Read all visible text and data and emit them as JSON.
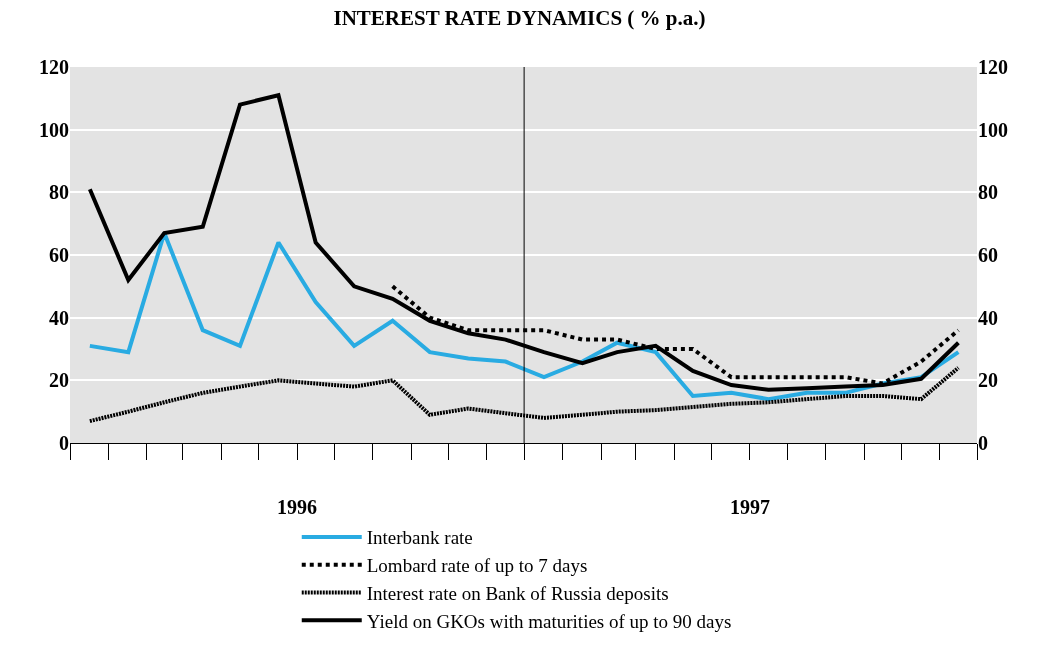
{
  "chart_data": {
    "type": "line",
    "title": "INTEREST RATE DYNAMICS ( % p.a.)",
    "x": [
      "1996-01",
      "1996-02",
      "1996-03",
      "1996-04",
      "1996-05",
      "1996-06",
      "1996-07",
      "1996-08",
      "1996-09",
      "1996-10",
      "1996-11",
      "1996-12",
      "1997-01",
      "1997-02",
      "1997-03",
      "1997-04",
      "1997-05",
      "1997-06",
      "1997-07",
      "1997-08",
      "1997-09",
      "1997-10",
      "1997-11",
      "1997-12"
    ],
    "xlim": [
      "1995-12-16",
      "1997-12-16"
    ],
    "xticks": [
      {
        "value": "1995-12-16",
        "label": null
      },
      {
        "value": "1996-01-16",
        "label": null
      },
      {
        "value": "1996-02-16",
        "label": null
      },
      {
        "value": "1996-03-16",
        "label": null
      },
      {
        "value": "1996-04-16",
        "label": null
      },
      {
        "value": "1996-05-16",
        "label": null
      },
      {
        "value": "1996-06-16",
        "label": "1996"
      },
      {
        "value": "1996-07-16",
        "label": null
      },
      {
        "value": "1996-08-16",
        "label": null
      },
      {
        "value": "1996-09-16",
        "label": null
      },
      {
        "value": "1996-10-16",
        "label": null
      },
      {
        "value": "1996-11-16",
        "label": null
      },
      {
        "value": "1996-12-16",
        "label": null
      },
      {
        "value": "1997-01-16",
        "label": null
      },
      {
        "value": "1997-02-16",
        "label": null
      },
      {
        "value": "1997-03-16",
        "label": null
      },
      {
        "value": "1997-04-16",
        "label": null
      },
      {
        "value": "1997-05-16",
        "label": null
      },
      {
        "value": "1997-06-16",
        "label": "1997"
      },
      {
        "value": "1997-07-16",
        "label": null
      },
      {
        "value": "1997-08-16",
        "label": null
      },
      {
        "value": "1997-09-16",
        "label": null
      },
      {
        "value": "1997-10-16",
        "label": null
      },
      {
        "value": "1997-11-16",
        "label": null
      },
      {
        "value": "1997-12-16",
        "label": null
      }
    ],
    "ylim": [
      0,
      120
    ],
    "yticks": [
      0,
      20,
      40,
      60,
      80,
      100,
      120
    ],
    "y2lim": [
      0,
      120
    ],
    "y2ticks": [
      0,
      20,
      40,
      60,
      80,
      100,
      120
    ],
    "grid": "y",
    "legend": "bottom",
    "marker": "none",
    "ref_lines": [
      {
        "axis": "x",
        "value": "1996-12-16",
        "color": "#000000"
      }
    ],
    "series": [
      {
        "name": "Interbank rate",
        "color": "#29abe2",
        "line_style": "solid",
        "values": [
          31,
          29,
          67,
          36,
          31,
          64,
          45,
          31,
          39,
          29,
          27,
          26,
          21,
          26,
          32,
          29,
          15,
          16,
          14,
          16,
          16,
          19,
          21,
          29
        ]
      },
      {
        "name": "Lombard rate of up to 7 days",
        "color": "#000000",
        "line_style": "dashed",
        "values": [
          null,
          null,
          null,
          null,
          null,
          null,
          null,
          null,
          50,
          40,
          36,
          36,
          36,
          33,
          33,
          30,
          30,
          21,
          21,
          21,
          21,
          19,
          26,
          36
        ]
      },
      {
        "name": "Interest rate on Bank of Russia deposits",
        "color": "#000000",
        "line_style": "dotted",
        "values": [
          7,
          10,
          13,
          16,
          18,
          20,
          19,
          18,
          20,
          9,
          11,
          9.5,
          8,
          9,
          10,
          10.5,
          11.5,
          12.5,
          13,
          14,
          15,
          15,
          14,
          24
        ]
      },
      {
        "name": "Yield on GKOs with maturities of up to 90 days",
        "color": "#000000",
        "line_style": "solid",
        "values": [
          81,
          52,
          67,
          69,
          108,
          111,
          64,
          50,
          46,
          39,
          35,
          33,
          29,
          25.5,
          29,
          31,
          23,
          18.5,
          17,
          17.5,
          18,
          18.5,
          20.5,
          32
        ]
      }
    ]
  }
}
